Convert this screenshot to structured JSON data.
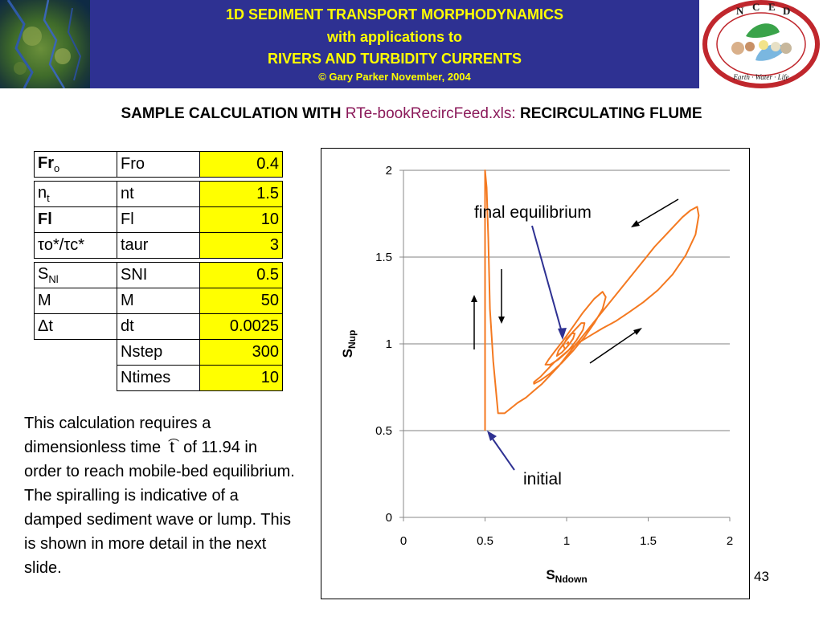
{
  "header": {
    "line1": "1D SEDIMENT TRANSPORT MORPHODYNAMICS",
    "line2": "with applications to",
    "line3": "RIVERS AND TURBIDITY CURRENTS",
    "line4": "© Gary Parker November, 2004",
    "banner_color": "#2e3192",
    "banner_text_color": "#ffff00",
    "logo_letters": [
      "N",
      "C",
      "E",
      "D"
    ],
    "logo_motto": "Earth · Water · Life"
  },
  "title": {
    "prefix": "SAMPLE CALCULATION WITH ",
    "file": "RTe-bookRecircFeed.xls:",
    "suffix": "  RECIRCULATING FLUME"
  },
  "params": {
    "rows": [
      {
        "sym": "Fr",
        "sym_sub": "o",
        "bold": true,
        "name": "Fro",
        "value": "0.4"
      },
      {
        "sym": "n",
        "sym_sub": "t",
        "bold": false,
        "name": "nt",
        "value": "1.5"
      },
      {
        "sym": "Fl",
        "sym_sub": "",
        "bold": true,
        "name": "Fl",
        "value": "10"
      },
      {
        "sym": "τo*/τc*",
        "sym_sub": "",
        "bold": false,
        "name": "taur",
        "value": "3"
      },
      {
        "sym": "S",
        "sym_sub": "Nl",
        "bold": false,
        "name": "SNI",
        "value": "0.5"
      },
      {
        "sym": "M",
        "sym_sub": "",
        "bold": false,
        "name": "M",
        "value": "50"
      },
      {
        "sym": "Δt",
        "sym_sub": "",
        "bold": false,
        "name": "dt",
        "value": "0.0025"
      },
      {
        "sym": "",
        "sym_sub": "",
        "bold": false,
        "name": "Nstep",
        "value": "300"
      },
      {
        "sym": "",
        "sym_sub": "",
        "bold": false,
        "name": "Ntimes",
        "value": "10"
      }
    ]
  },
  "note": {
    "before": "This calculation requires a dimensionless time",
    "symbol": "t",
    "after": "of 11.94 in order to reach mobile-bed equilibrium.  The spiralling is indicative of a damped sediment wave or lump.  This is shown in more detail in the next slide."
  },
  "chart_data": {
    "type": "line",
    "xlabel": "S",
    "xlabel_sub": "Ndown",
    "ylabel": "S",
    "ylabel_sub": "Nup",
    "xlim": [
      0,
      2
    ],
    "ylim": [
      0,
      2
    ],
    "x_ticks": [
      "0",
      "0.5",
      "1",
      "1.5",
      "2"
    ],
    "y_ticks": [
      "0",
      "0.5",
      "1",
      "1.5",
      "2"
    ],
    "grid": "horizontal",
    "series_color": "#f47920",
    "annotations": {
      "final": "final equilibrium",
      "initial": "initial"
    },
    "series": [
      {
        "x": [
          0.5,
          0.5,
          0.5,
          0.5,
          0.5,
          0.5,
          0.5,
          0.51,
          0.52,
          0.53,
          0.55,
          0.58,
          0.62,
          0.66,
          0.7,
          0.75,
          0.8,
          0.85,
          0.9,
          0.95,
          1.0,
          1.06,
          1.12,
          1.18,
          1.24,
          1.3,
          1.36,
          1.42,
          1.48,
          1.54,
          1.6,
          1.66,
          1.71,
          1.76,
          1.8,
          1.81,
          1.79,
          1.73,
          1.65,
          1.56,
          1.47,
          1.38,
          1.3,
          1.22,
          1.15,
          1.08,
          1.02,
          0.97,
          0.92,
          0.88,
          0.84,
          0.8,
          0.8,
          0.84,
          0.9,
          0.97,
          1.04,
          1.11,
          1.17,
          1.22,
          1.24,
          1.22,
          1.17,
          1.1,
          1.04,
          0.98,
          0.93,
          0.89,
          0.87,
          0.9,
          0.95,
          1.01,
          1.06,
          1.1,
          1.11,
          1.09,
          1.04,
          0.99,
          0.95,
          0.94,
          0.97,
          1.01,
          1.04,
          1.05,
          1.03,
          1.0,
          0.98,
          0.99,
          1.01,
          1.01,
          1.0
        ],
        "y": [
          0.5,
          0.6,
          0.8,
          1.0,
          1.2,
          1.5,
          2.0,
          1.9,
          1.6,
          1.2,
          0.9,
          0.6,
          0.6,
          0.63,
          0.66,
          0.69,
          0.73,
          0.77,
          0.82,
          0.87,
          0.93,
          1.0,
          1.07,
          1.14,
          1.21,
          1.28,
          1.35,
          1.42,
          1.49,
          1.56,
          1.62,
          1.68,
          1.73,
          1.77,
          1.79,
          1.74,
          1.63,
          1.51,
          1.4,
          1.31,
          1.24,
          1.18,
          1.13,
          1.09,
          1.05,
          1.01,
          0.97,
          0.93,
          0.89,
          0.85,
          0.81,
          0.78,
          0.77,
          0.79,
          0.83,
          0.89,
          0.96,
          1.04,
          1.12,
          1.2,
          1.27,
          1.3,
          1.26,
          1.18,
          1.1,
          1.02,
          0.96,
          0.91,
          0.88,
          0.88,
          0.91,
          0.96,
          1.02,
          1.08,
          1.12,
          1.12,
          1.07,
          1.01,
          0.96,
          0.93,
          0.95,
          0.99,
          1.03,
          1.06,
          1.06,
          1.03,
          0.99,
          0.97,
          0.99,
          1.01,
          1.0
        ]
      }
    ]
  },
  "page_number": "43"
}
